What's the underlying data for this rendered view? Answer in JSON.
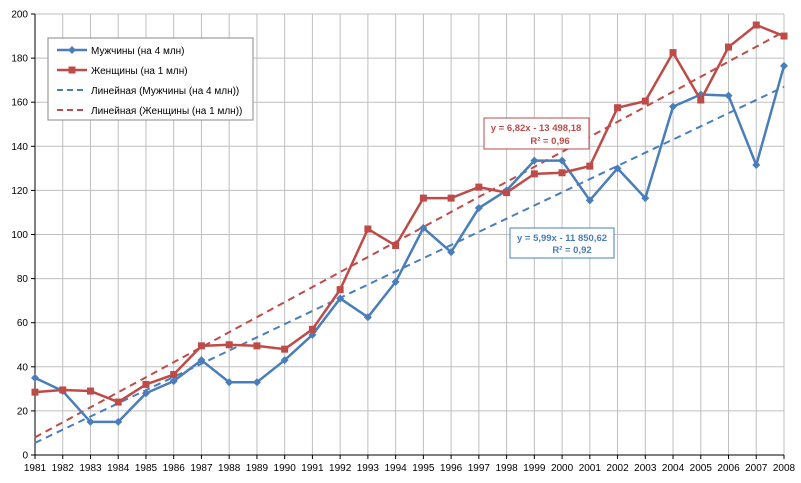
{
  "chart_data": {
    "type": "line",
    "title": "",
    "xlabel": "",
    "ylabel": "",
    "ylim": [
      0,
      200
    ],
    "y_ticks": [
      0,
      20,
      40,
      60,
      80,
      100,
      120,
      140,
      160,
      180,
      200
    ],
    "grid": true,
    "legend_position": "top-left",
    "x": [
      "1981",
      "1982",
      "1983",
      "1984",
      "1985",
      "1986",
      "1987",
      "1988",
      "1989",
      "1990",
      "1991",
      "1992",
      "1993",
      "1994",
      "1995",
      "1996",
      "1997",
      "1998",
      "1999",
      "2000",
      "2001",
      "2002",
      "2003",
      "2004",
      "2005",
      "2006",
      "2007",
      "2008"
    ],
    "series": [
      {
        "name": "Мужчины (на 4 млн)",
        "color": "#4a7ebb",
        "marker": "diamond",
        "values": [
          35,
          29,
          15,
          15,
          28,
          33.5,
          43,
          33,
          33,
          43,
          54.5,
          71,
          62.5,
          78.5,
          103,
          92,
          112,
          120,
          133.5,
          133.5,
          115.5,
          130,
          116.5,
          158,
          163.5,
          163,
          131.5,
          176.5
        ]
      },
      {
        "name": "Женщины (на 1 млн)",
        "color": "#be4b48",
        "marker": "square",
        "values": [
          28.5,
          29.5,
          29,
          24,
          32,
          36.5,
          49.5,
          50,
          49.5,
          48,
          57,
          75,
          102.5,
          95,
          116.5,
          116.5,
          121.5,
          119,
          127.5,
          128,
          131,
          157.5,
          160.5,
          182.5,
          161,
          185,
          195,
          190
        ]
      }
    ],
    "trendlines": [
      {
        "name": "Линейная (Мужчины (на 4 млн))",
        "color": "#4a7ebb",
        "start": 5.5,
        "end": 167,
        "equation": "y = 5,99x - 11 850,62",
        "r2": "R² = 0,92"
      },
      {
        "name": "Линейная (Женщины (на 1 млн))",
        "color": "#be4b48",
        "start": 8,
        "end": 192,
        "equation": "y = 6,82x - 13 498,18",
        "r2": "R² = 0,96"
      }
    ]
  }
}
